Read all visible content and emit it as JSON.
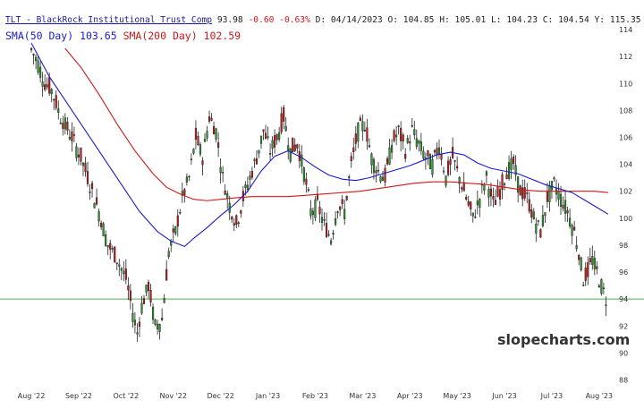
{
  "header": {
    "title": "TLT - BlackRock Institutional Trust Comp",
    "last": "93.98",
    "change": "-0.60",
    "change_pct": "-0.63%",
    "quote": "D: 04/14/2023 O: 104.85 H: 105.01 L: 104.23 C: 104.54 Y: 115.35"
  },
  "legend": {
    "sma50": "SMA(50 Day) 103.65",
    "sma200": "SMA(200 Day) 102.59"
  },
  "watermark": "slopecharts.com",
  "colors": {
    "up": "#2aa02a",
    "down": "#d01818",
    "sma50": "#1a1ad0",
    "sma200": "#d01818",
    "hline": "#4caf50"
  },
  "chart_data": {
    "type": "candlestick",
    "y_ticks": [
      88,
      90,
      92,
      94,
      96,
      98,
      100,
      102,
      104,
      106,
      108,
      110,
      112,
      114
    ],
    "ylim": [
      87.5,
      114.6
    ],
    "x_ticks": [
      {
        "label": "Aug '22",
        "x": 0
      },
      {
        "label": "Sep '22",
        "x": 21
      },
      {
        "label": "Oct '22",
        "x": 42
      },
      {
        "label": "Nov '22",
        "x": 63
      },
      {
        "label": "Dec '22",
        "x": 84
      },
      {
        "label": "Jan '23",
        "x": 105
      },
      {
        "label": "Feb '23",
        "x": 126
      },
      {
        "label": "Mar '23",
        "x": 147
      },
      {
        "label": "Apr '23",
        "x": 168
      },
      {
        "label": "May '23",
        "x": 189
      },
      {
        "label": "Jun '23",
        "x": 210
      },
      {
        "label": "Jul '23",
        "x": 231
      },
      {
        "label": "Aug '23",
        "x": 252
      }
    ],
    "xlim": [
      -2,
      260
    ],
    "hline": 94,
    "closes_keypoints": [
      [
        0,
        112.5
      ],
      [
        3,
        111.5
      ],
      [
        6,
        110.0
      ],
      [
        9,
        109.5
      ],
      [
        13,
        107.5
      ],
      [
        18,
        106.0
      ],
      [
        22,
        104.5
      ],
      [
        26,
        102.5
      ],
      [
        30,
        100.5
      ],
      [
        34,
        98.0
      ],
      [
        38,
        97.0
      ],
      [
        42,
        95.5
      ],
      [
        45,
        93.0
      ],
      [
        47,
        91.5
      ],
      [
        49,
        93.5
      ],
      [
        52,
        95.0
      ],
      [
        55,
        92.0
      ],
      [
        58,
        92.5
      ],
      [
        61,
        97.5
      ],
      [
        64,
        99.0
      ],
      [
        67,
        101.5
      ],
      [
        70,
        103.0
      ],
      [
        73,
        106.0
      ],
      [
        76,
        104.5
      ],
      [
        79,
        107.5
      ],
      [
        82,
        106.5
      ],
      [
        85,
        103.0
      ],
      [
        88,
        101.0
      ],
      [
        91,
        99.5
      ],
      [
        94,
        101.5
      ],
      [
        97,
        103.0
      ],
      [
        100,
        104.5
      ],
      [
        103,
        106.5
      ],
      [
        106,
        105.0
      ],
      [
        109,
        106.0
      ],
      [
        112,
        107.5
      ],
      [
        115,
        105.0
      ],
      [
        118,
        105.5
      ],
      [
        121,
        103.5
      ],
      [
        124,
        100.5
      ],
      [
        127,
        101.0
      ],
      [
        130,
        99.5
      ],
      [
        133,
        98.5
      ],
      [
        136,
        101.0
      ],
      [
        139,
        100.5
      ],
      [
        142,
        104.0
      ],
      [
        145,
        106.5
      ],
      [
        148,
        107.0
      ],
      [
        151,
        104.5
      ],
      [
        154,
        103.5
      ],
      [
        157,
        103.0
      ],
      [
        160,
        105.5
      ],
      [
        163,
        106.5
      ],
      [
        166,
        105.0
      ],
      [
        169,
        106.5
      ],
      [
        172,
        105.5
      ],
      [
        175,
        104.5
      ],
      [
        178,
        104.0
      ],
      [
        181,
        105.5
      ],
      [
        184,
        103.0
      ],
      [
        187,
        104.5
      ],
      [
        190,
        103.0
      ],
      [
        193,
        101.5
      ],
      [
        196,
        100.0
      ],
      [
        199,
        101.5
      ],
      [
        202,
        103.0
      ],
      [
        205,
        101.0
      ],
      [
        208,
        102.0
      ],
      [
        211,
        103.5
      ],
      [
        214,
        104.0
      ],
      [
        217,
        102.0
      ],
      [
        220,
        101.5
      ],
      [
        223,
        100.0
      ],
      [
        226,
        99.0
      ],
      [
        229,
        101.5
      ],
      [
        232,
        102.5
      ],
      [
        235,
        101.5
      ],
      [
        238,
        100.5
      ],
      [
        241,
        99.0
      ],
      [
        243,
        97.5
      ],
      [
        245,
        95.5
      ],
      [
        247,
        96.0
      ],
      [
        249,
        97.0
      ],
      [
        251,
        96.0
      ],
      [
        253,
        95.0
      ],
      [
        255,
        94.0
      ]
    ],
    "sma50_points": [
      [
        0,
        113.0
      ],
      [
        8,
        110.5
      ],
      [
        16,
        108.5
      ],
      [
        24,
        106.5
      ],
      [
        32,
        104.5
      ],
      [
        40,
        102.5
      ],
      [
        48,
        100.5
      ],
      [
        56,
        99.0
      ],
      [
        62,
        98.3
      ],
      [
        68,
        97.9
      ],
      [
        72,
        98.5
      ],
      [
        78,
        99.3
      ],
      [
        84,
        100.2
      ],
      [
        90,
        101.0
      ],
      [
        96,
        102.0
      ],
      [
        102,
        103.5
      ],
      [
        108,
        104.6
      ],
      [
        114,
        105.0
      ],
      [
        120,
        104.5
      ],
      [
        126,
        103.8
      ],
      [
        132,
        103.2
      ],
      [
        138,
        102.9
      ],
      [
        144,
        102.8
      ],
      [
        150,
        103.0
      ],
      [
        156,
        103.3
      ],
      [
        162,
        103.6
      ],
      [
        168,
        103.9
      ],
      [
        174,
        104.3
      ],
      [
        180,
        104.7
      ],
      [
        186,
        104.9
      ],
      [
        192,
        104.7
      ],
      [
        198,
        104.1
      ],
      [
        204,
        103.7
      ],
      [
        210,
        103.5
      ],
      [
        216,
        103.3
      ],
      [
        222,
        102.9
      ],
      [
        228,
        102.5
      ],
      [
        234,
        102.2
      ],
      [
        240,
        101.9
      ],
      [
        246,
        101.3
      ],
      [
        252,
        100.7
      ],
      [
        256,
        100.3
      ]
    ],
    "sma200_points": [
      [
        15,
        112.6
      ],
      [
        22,
        111.2
      ],
      [
        30,
        109.2
      ],
      [
        38,
        107.0
      ],
      [
        46,
        105.0
      ],
      [
        54,
        103.3
      ],
      [
        60,
        102.3
      ],
      [
        66,
        101.8
      ],
      [
        72,
        101.4
      ],
      [
        78,
        101.3
      ],
      [
        84,
        101.4
      ],
      [
        90,
        101.5
      ],
      [
        98,
        101.6
      ],
      [
        106,
        101.6
      ],
      [
        114,
        101.6
      ],
      [
        122,
        101.7
      ],
      [
        130,
        101.8
      ],
      [
        138,
        101.9
      ],
      [
        146,
        102.0
      ],
      [
        154,
        102.2
      ],
      [
        162,
        102.4
      ],
      [
        170,
        102.6
      ],
      [
        178,
        102.7
      ],
      [
        186,
        102.7
      ],
      [
        194,
        102.6
      ],
      [
        202,
        102.5
      ],
      [
        210,
        102.3
      ],
      [
        218,
        102.1
      ],
      [
        226,
        102.0
      ],
      [
        234,
        102.0
      ],
      [
        242,
        102.0
      ],
      [
        250,
        102.0
      ],
      [
        256,
        101.9
      ]
    ]
  }
}
